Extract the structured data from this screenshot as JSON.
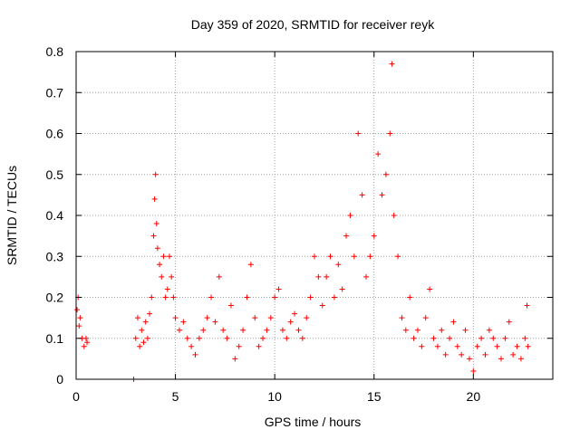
{
  "chart_data": {
    "type": "scatter",
    "title": "Day 359 of 2020, SRMTID for receiver reyk",
    "xlabel": "GPS time / hours",
    "ylabel": "SRMTID / TECUs",
    "xlim": [
      0,
      24
    ],
    "ylim": [
      0,
      0.8
    ],
    "x_ticks": [
      0,
      5,
      10,
      15,
      20
    ],
    "x_tick_labels": [
      "0",
      "5",
      "10",
      "15",
      "20"
    ],
    "y_ticks": [
      0,
      0.1,
      0.2,
      0.3,
      0.4,
      0.5,
      0.6,
      0.7,
      0.8
    ],
    "y_tick_labels": [
      "0",
      "0.1",
      "0.2",
      "0.3",
      "0.4",
      "0.5",
      "0.6",
      "0.7",
      "0.8"
    ],
    "grid": true,
    "marker": "plus",
    "color": "#ff0000",
    "series": [
      {
        "name": "SRMTID",
        "envelope_note": "approximate trend points read from dense scatter",
        "points": [
          [
            0.05,
            0.17
          ],
          [
            0.1,
            0.2
          ],
          [
            0.15,
            0.13
          ],
          [
            0.2,
            0.15
          ],
          [
            0.3,
            0.1
          ],
          [
            0.4,
            0.08
          ],
          [
            0.5,
            0.1
          ],
          [
            0.55,
            0.09
          ],
          [
            2.9,
            0.0
          ],
          [
            3.0,
            0.1
          ],
          [
            3.1,
            0.15
          ],
          [
            3.2,
            0.08
          ],
          [
            3.3,
            0.12
          ],
          [
            3.4,
            0.09
          ],
          [
            3.5,
            0.14
          ],
          [
            3.6,
            0.1
          ],
          [
            3.7,
            0.16
          ],
          [
            3.8,
            0.2
          ],
          [
            3.9,
            0.35
          ],
          [
            3.95,
            0.44
          ],
          [
            4.0,
            0.5
          ],
          [
            4.05,
            0.38
          ],
          [
            4.1,
            0.32
          ],
          [
            4.2,
            0.28
          ],
          [
            4.3,
            0.25
          ],
          [
            4.4,
            0.3
          ],
          [
            4.5,
            0.2
          ],
          [
            4.6,
            0.22
          ],
          [
            4.7,
            0.3
          ],
          [
            4.8,
            0.25
          ],
          [
            4.9,
            0.2
          ],
          [
            5.0,
            0.15
          ],
          [
            5.2,
            0.12
          ],
          [
            5.4,
            0.14
          ],
          [
            5.6,
            0.1
          ],
          [
            5.8,
            0.08
          ],
          [
            6.0,
            0.06
          ],
          [
            6.2,
            0.1
          ],
          [
            6.4,
            0.12
          ],
          [
            6.6,
            0.15
          ],
          [
            6.8,
            0.2
          ],
          [
            7.0,
            0.14
          ],
          [
            7.2,
            0.25
          ],
          [
            7.4,
            0.12
          ],
          [
            7.6,
            0.1
          ],
          [
            7.8,
            0.18
          ],
          [
            8.0,
            0.05
          ],
          [
            8.2,
            0.08
          ],
          [
            8.4,
            0.12
          ],
          [
            8.6,
            0.2
          ],
          [
            8.8,
            0.28
          ],
          [
            9.0,
            0.15
          ],
          [
            9.2,
            0.08
          ],
          [
            9.4,
            0.1
          ],
          [
            9.6,
            0.12
          ],
          [
            9.8,
            0.15
          ],
          [
            10.0,
            0.2
          ],
          [
            10.2,
            0.22
          ],
          [
            10.4,
            0.12
          ],
          [
            10.6,
            0.1
          ],
          [
            10.8,
            0.14
          ],
          [
            11.0,
            0.16
          ],
          [
            11.2,
            0.12
          ],
          [
            11.4,
            0.1
          ],
          [
            11.6,
            0.15
          ],
          [
            11.8,
            0.2
          ],
          [
            12.0,
            0.3
          ],
          [
            12.2,
            0.25
          ],
          [
            12.4,
            0.18
          ],
          [
            12.6,
            0.25
          ],
          [
            12.8,
            0.3
          ],
          [
            13.0,
            0.2
          ],
          [
            13.2,
            0.28
          ],
          [
            13.4,
            0.22
          ],
          [
            13.6,
            0.35
          ],
          [
            13.8,
            0.4
          ],
          [
            14.0,
            0.3
          ],
          [
            14.2,
            0.6
          ],
          [
            14.4,
            0.45
          ],
          [
            14.6,
            0.25
          ],
          [
            14.8,
            0.3
          ],
          [
            15.0,
            0.35
          ],
          [
            15.2,
            0.55
          ],
          [
            15.4,
            0.45
          ],
          [
            15.6,
            0.5
          ],
          [
            15.8,
            0.6
          ],
          [
            15.9,
            0.77
          ],
          [
            16.0,
            0.4
          ],
          [
            16.2,
            0.3
          ],
          [
            16.4,
            0.15
          ],
          [
            16.6,
            0.12
          ],
          [
            16.8,
            0.2
          ],
          [
            17.0,
            0.1
          ],
          [
            17.2,
            0.12
          ],
          [
            17.4,
            0.08
          ],
          [
            17.6,
            0.15
          ],
          [
            17.8,
            0.22
          ],
          [
            18.0,
            0.1
          ],
          [
            18.2,
            0.08
          ],
          [
            18.4,
            0.12
          ],
          [
            18.6,
            0.06
          ],
          [
            18.8,
            0.1
          ],
          [
            19.0,
            0.14
          ],
          [
            19.2,
            0.08
          ],
          [
            19.4,
            0.06
          ],
          [
            19.6,
            0.12
          ],
          [
            19.8,
            0.05
          ],
          [
            20.0,
            0.02
          ],
          [
            20.2,
            0.08
          ],
          [
            20.4,
            0.1
          ],
          [
            20.6,
            0.06
          ],
          [
            20.8,
            0.12
          ],
          [
            21.0,
            0.1
          ],
          [
            21.2,
            0.08
          ],
          [
            21.4,
            0.05
          ],
          [
            21.6,
            0.1
          ],
          [
            21.8,
            0.14
          ],
          [
            22.0,
            0.06
          ],
          [
            22.2,
            0.08
          ],
          [
            22.4,
            0.05
          ],
          [
            22.6,
            0.1
          ],
          [
            22.7,
            0.18
          ],
          [
            22.75,
            0.08
          ]
        ]
      }
    ]
  }
}
